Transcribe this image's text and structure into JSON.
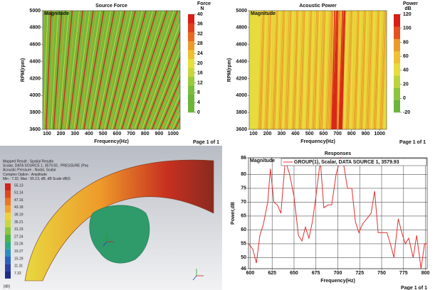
{
  "chart_data": [
    {
      "type": "heatmap",
      "title": "Source Force",
      "annotation": "Magnitude",
      "x_label": "Frequency(Hz)",
      "y_label": "RPM(rpm)",
      "page_label": "Page 1 of 1",
      "xlim": [
        70,
        1050
      ],
      "xticks": [
        100,
        200,
        300,
        400,
        500,
        600,
        700,
        800,
        900,
        1000
      ],
      "ylim": [
        3600,
        5000
      ],
      "yticks": [
        3600,
        3800,
        4000,
        4200,
        4400,
        4600,
        4800,
        5000
      ],
      "background": "#74b83e",
      "stripe_colors": [
        "#d8281a",
        "#e9a524",
        "#e4dc3a"
      ],
      "colorbar": {
        "title": "Force",
        "unit": "N",
        "lim": [
          0,
          40
        ],
        "ticks": [
          0,
          4,
          8,
          12,
          16,
          20,
          24,
          28,
          32,
          36,
          40
        ],
        "colors": [
          "#6cb43a",
          "#6cb43a",
          "#7cbe3c",
          "#9acb3e",
          "#c8d83c",
          "#e8e03a",
          "#f0c030",
          "#ee9a2a",
          "#e86a22",
          "#e0401c",
          "#d81e16"
        ]
      }
    },
    {
      "type": "heatmap",
      "title": "Acoustic Power",
      "annotation": "Magnitude",
      "x_label": "Frequency(Hz)",
      "y_label": "RPM(rpm)",
      "page_label": "Page 1 of 1",
      "xlim": [
        70,
        1050
      ],
      "xticks": [
        100,
        200,
        300,
        400,
        500,
        600,
        700,
        800,
        900,
        1000
      ],
      "ylim": [
        3600,
        5000
      ],
      "yticks": [
        3600,
        3800,
        4000,
        4200,
        4400,
        4600,
        4800,
        5000
      ],
      "background": "#e6dc3e",
      "stripe_colors": [
        "#d8281a",
        "#ec9a2a",
        "#f0c034"
      ],
      "colorbar": {
        "title": "Power",
        "unit": "dB",
        "lim": [
          -20,
          120
        ],
        "ticks": [
          -20,
          0,
          20,
          40,
          60,
          80,
          100,
          120
        ],
        "colors": [
          "#6cb43a",
          "#8cc43c",
          "#bcd43c",
          "#e6dc3a",
          "#f0c030",
          "#ec9a2a",
          "#e4501e",
          "#d81e16"
        ]
      }
    },
    {
      "type": "line",
      "title": "Responses",
      "annotation": "Magnitude",
      "x_label": "Frequency(Hz)",
      "y_label": "Power,dB",
      "page_label": "Page 1 of 1",
      "series_name": "GROUP(1), Scalar, DATA SOURCE 1, 3579.93",
      "color": "#e03030",
      "xlim": [
        598,
        802
      ],
      "xticks": [
        600,
        625,
        650,
        675,
        700,
        725,
        750,
        775,
        800
      ],
      "ylim": [
        46,
        86
      ],
      "yticks": [
        46,
        50,
        55,
        60,
        65,
        70,
        75,
        80,
        86
      ],
      "grid": true,
      "x": [
        598,
        603,
        607,
        611,
        615,
        620,
        623,
        627,
        631,
        635,
        640,
        645,
        650,
        655,
        659,
        663,
        667,
        671,
        675,
        680,
        684,
        689,
        693,
        698,
        703,
        707,
        711,
        716,
        720,
        724,
        728,
        733,
        738,
        742,
        746,
        751,
        756,
        760,
        764,
        769,
        773,
        777,
        781,
        786,
        790,
        795,
        799,
        802
      ],
      "values": [
        55,
        53,
        48,
        58,
        62,
        70,
        82,
        70,
        69,
        66,
        85,
        80,
        72,
        58,
        56,
        61,
        57,
        63,
        72,
        85,
        68,
        69,
        69,
        80,
        86,
        83,
        75,
        75,
        63,
        59,
        62,
        64,
        66,
        74,
        59,
        59,
        59,
        55,
        50,
        64,
        59,
        55,
        57,
        50,
        58,
        46,
        55,
        55
      ]
    }
  ],
  "mapped_result": {
    "lines": [
      "Mapped Result : Spatial Results",
      "Scalar, DATA SOURCE 1, 3579.93 , PRESSURE (Pas",
      "Acoustic Pressure - Nodal, Scalar",
      "Complex Option : Amplitude",
      "Min : 7.32, Max : 55.13, dB, dB Scale dB(0."
    ],
    "legend_values": [
      55.13,
      51.14,
      47.16,
      43.18,
      39.19,
      35.21,
      31.23,
      27.24,
      23.26,
      19.27,
      15.29,
      11.31,
      7.32
    ],
    "legend_colors": [
      "#d42018",
      "#e2461c",
      "#ec7424",
      "#f2a22c",
      "#eed232",
      "#c6d83a",
      "#8cc63c",
      "#4eb444",
      "#2ea888",
      "#2a8cc4",
      "#2a62c0",
      "#2a40a8",
      "#1e2a88"
    ],
    "unit": "[dB]"
  }
}
